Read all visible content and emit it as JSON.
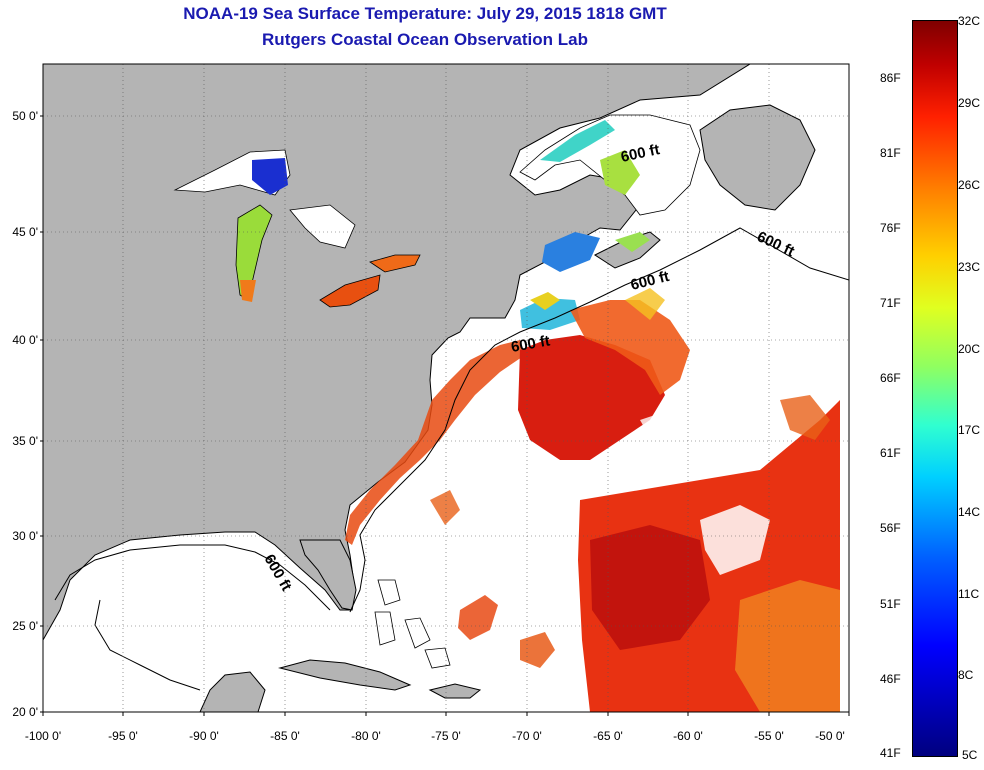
{
  "title": {
    "line1": "NOAA-19 Sea Surface Temperature:  July 29, 2015 1818 GMT",
    "line2": "Rutgers Coastal Ocean Observation Lab"
  },
  "axes": {
    "lat_labels": [
      "50 0'",
      "45 0'",
      "40 0'",
      "35 0'",
      "30 0'",
      "25 0'",
      "20 0'"
    ],
    "lon_labels": [
      "-100 0'",
      "-95 0'",
      "-90 0'",
      "-85 0'",
      "-80 0'",
      "-75 0'",
      "-70 0'",
      "-65 0'",
      "-60 0'",
      "-55 0'",
      "-50 0'"
    ]
  },
  "isobath_label": "600 ft",
  "colorbar": {
    "fahrenheit": [
      "86F",
      "81F",
      "76F",
      "71F",
      "66F",
      "61F",
      "56F",
      "51F",
      "46F",
      "41F"
    ],
    "celsius": [
      "32C",
      "29C",
      "26C",
      "23C",
      "20C",
      "17C",
      "14C",
      "11C",
      "8C",
      "5C"
    ]
  },
  "colors": {
    "title": "#1a1ab0",
    "land": "#b4b4b4",
    "ocean": "#ffffff"
  }
}
